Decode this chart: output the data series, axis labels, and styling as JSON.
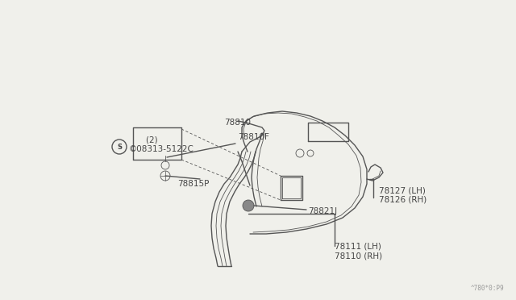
{
  "bg_color": "#f0f0eb",
  "line_color": "#555555",
  "text_color": "#444444",
  "fig_width": 6.4,
  "fig_height": 3.72,
  "watermark": "^780*0:P9",
  "label_78110": "78110 (RH)",
  "label_78111": "78111 (LH)",
  "label_78821J": "78821J",
  "label_78126": "78126 (RH)",
  "label_78127": "78127 (LH)",
  "label_78815P": "78815P",
  "label_08313": "©08313-5122C",
  "label_08313b": "    (2)",
  "label_78810F": "78810F",
  "label_78810": "78810"
}
